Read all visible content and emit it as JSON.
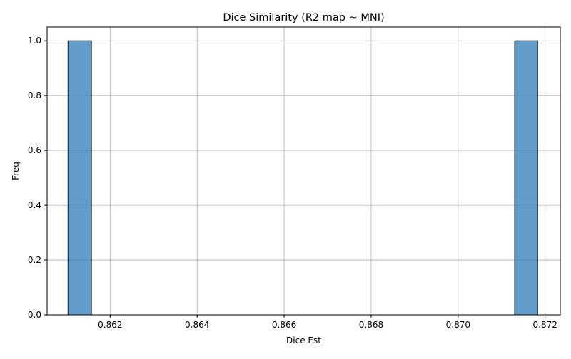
{
  "chart_data": {
    "type": "bar",
    "title": "Dice Similarity (R2 map ~ MNI)",
    "xlabel": "Dice Est",
    "ylabel": "Freq",
    "xlim": [
      0.86055,
      0.87235
    ],
    "ylim": [
      0,
      1.05
    ],
    "grid": true,
    "bins": [
      {
        "start": 0.86103,
        "end": 0.86157,
        "count": 1
      },
      {
        "start": 0.8713,
        "end": 0.87183,
        "count": 1
      }
    ],
    "x_ticks": [
      "0.862",
      "0.864",
      "0.866",
      "0.868",
      "0.870",
      "0.872"
    ],
    "x_tick_values": [
      0.862,
      0.864,
      0.866,
      0.868,
      0.87,
      0.872
    ],
    "y_ticks": [
      "0.0",
      "0.2",
      "0.4",
      "0.6",
      "0.8",
      "1.0"
    ],
    "y_tick_values": [
      0.0,
      0.2,
      0.4,
      0.6,
      0.8,
      1.0
    ],
    "colors": {
      "bar": "#3f86c0",
      "edge": "#1a1a1a",
      "grid": "#b0b0b0"
    }
  }
}
